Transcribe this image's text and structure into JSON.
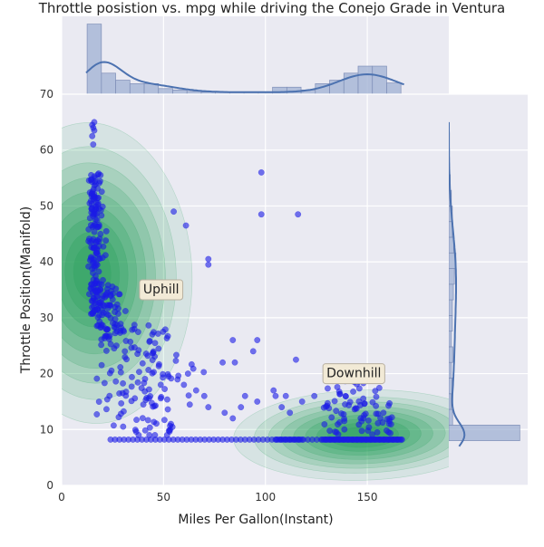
{
  "chart_data": {
    "type": "scatter",
    "title": "Throttle posistion vs. mpg while driving the Conejo Grade in Ventura",
    "xlabel": "Miles Per Gallon(Instant)",
    "ylabel": "Throttle Position(Manifold)",
    "xlim": [
      0,
      190
    ],
    "ylim": [
      0,
      70
    ],
    "xticks": [
      0,
      50,
      100,
      150
    ],
    "yticks": [
      0,
      10,
      20,
      30,
      40,
      50,
      60,
      70
    ],
    "grid": true,
    "style": "seaborn darkgrid jointplot with marginal histograms, KDE curves and a filled 2D density",
    "colors": {
      "points": "#1a1ae6",
      "density": "#2ca25f",
      "histogram": "#9fb0d3",
      "kde_line": "#4c72b0",
      "axes_background": "#eaeaf2"
    },
    "annotations": [
      {
        "text": "Uphill",
        "x": 40,
        "y": 35
      },
      {
        "text": "Downhill",
        "x": 130,
        "y": 20
      }
    ],
    "marginal_x_histogram": {
      "bin_edges": [
        12.5,
        19.5,
        26.5,
        33.5,
        40.5,
        47.5,
        54.5,
        61.5,
        68.5,
        75.5,
        82.5,
        89.5,
        96.5,
        103.5,
        110.5,
        117.5,
        124.5,
        131.5,
        138.5,
        145.5,
        152.5,
        159.5,
        166.5
      ],
      "density_counts": [
        10,
        3,
        2,
        1.5,
        1.5,
        0.8,
        0.6,
        0.4,
        0.3,
        0.3,
        0.3,
        0.3,
        0.3,
        1.0,
        1.0,
        0.6,
        1.5,
        2.0,
        3.0,
        4.0,
        4.0,
        1.6
      ]
    },
    "marginal_y_histogram": {
      "bin_edges": [
        8,
        10.8,
        13.6,
        16.4,
        19.2,
        22,
        24.8,
        27.6,
        30.4,
        33.2,
        36,
        38.8,
        41.6,
        44.4,
        47.2,
        50,
        52.8,
        55.6
      ],
      "density_counts": [
        28,
        1.5,
        0.9,
        1.3,
        1.0,
        1.6,
        1.0,
        1.4,
        1.4,
        1.8,
        2.2,
        2.8,
        1.9,
        1.4,
        1.4,
        1.0,
        0.6
      ]
    }
  }
}
